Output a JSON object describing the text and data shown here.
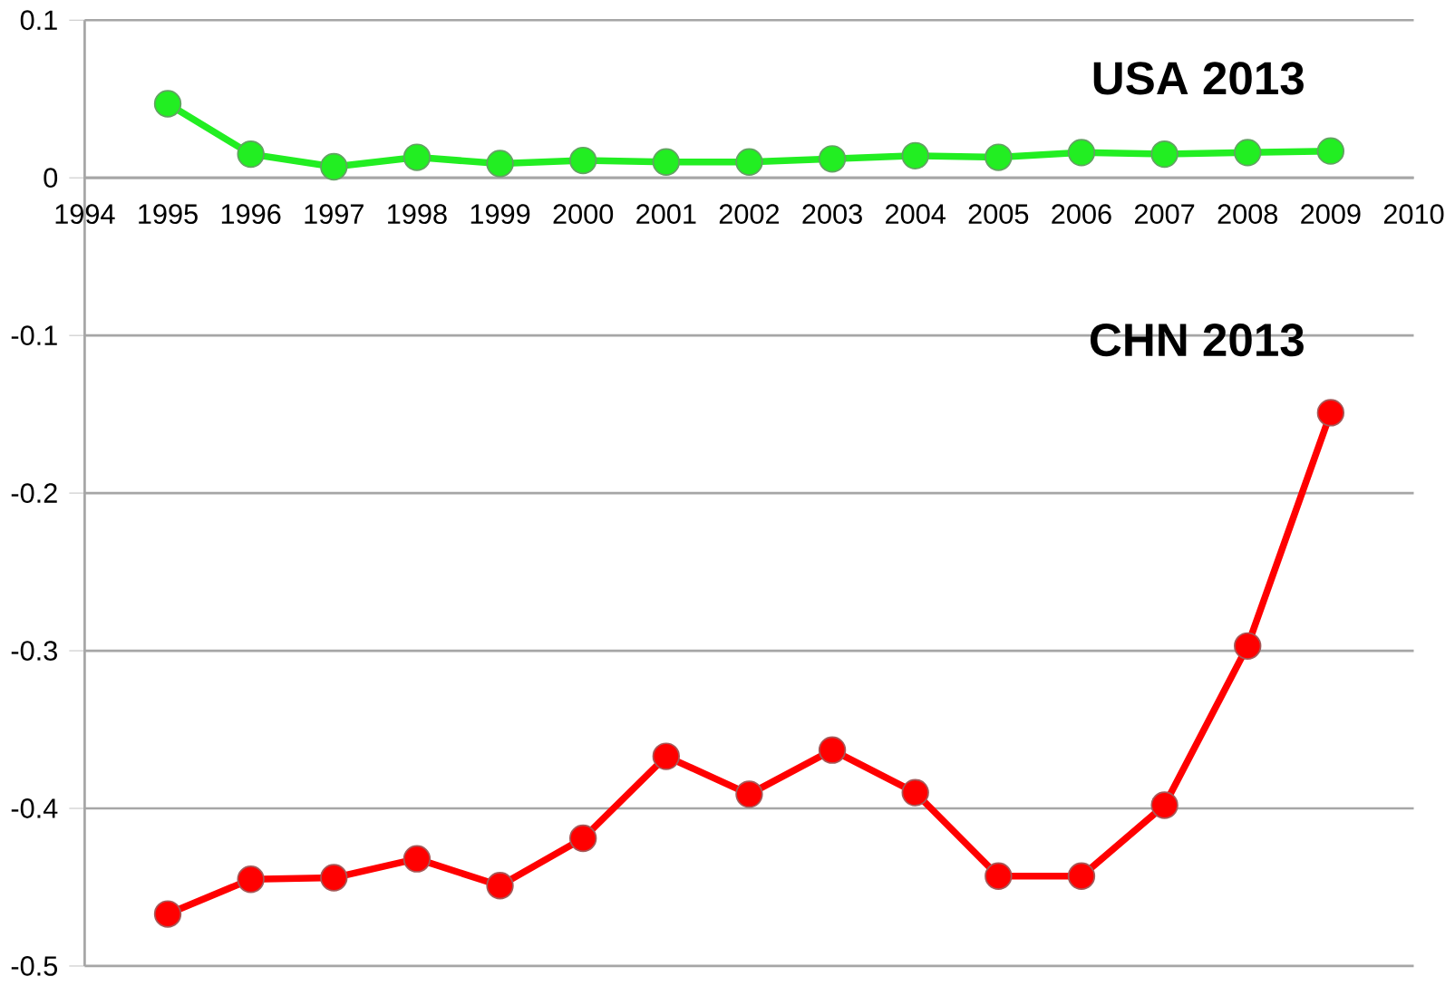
{
  "chart_data": {
    "type": "line",
    "x": [
      1995,
      1996,
      1997,
      1998,
      1999,
      2000,
      2001,
      2002,
      2003,
      2004,
      2005,
      2006,
      2007,
      2008,
      2009
    ],
    "series": [
      {
        "name": "USA  2013",
        "color": "#22ee22",
        "values": [
          0.047,
          0.015,
          0.007,
          0.013,
          0.009,
          0.011,
          0.01,
          0.01,
          0.012,
          0.014,
          0.013,
          0.016,
          0.015,
          0.016,
          0.017
        ]
      },
      {
        "name": "CHN 2013",
        "color": "#ff0000",
        "values": [
          -0.467,
          -0.445,
          -0.444,
          -0.432,
          -0.449,
          -0.419,
          -0.367,
          -0.391,
          -0.363,
          -0.39,
          -0.443,
          -0.443,
          -0.398,
          -0.297,
          -0.149
        ]
      }
    ],
    "xlim": [
      1994,
      2010
    ],
    "xticks": [
      1994,
      1995,
      1996,
      1997,
      1998,
      1999,
      2000,
      2001,
      2002,
      2003,
      2004,
      2005,
      2006,
      2007,
      2008,
      2009,
      2010
    ],
    "ylim": [
      -0.5,
      0.1
    ],
    "yticks": [
      -0.5,
      -0.4,
      -0.3,
      -0.2,
      -0.1,
      0,
      0.1
    ],
    "grid": "y",
    "marker": "circle"
  }
}
